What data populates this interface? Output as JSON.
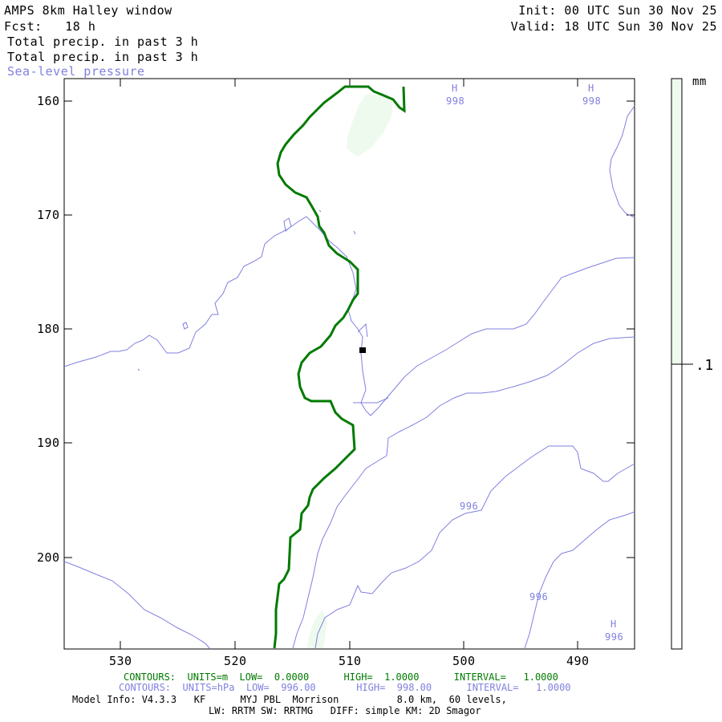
{
  "header": {
    "title_left": "AMPS 8km Halley window",
    "fcst": "Fcst:   18 h",
    "field1": "Total precip. in past 3 h",
    "field2": "Total precip. in past 3 h",
    "field3": "Sea-level pressure",
    "init": "Init: 00 UTC Sun 30 Nov 25",
    "valid": "Valid: 18 UTC Sun 30 Nov 25"
  },
  "axes": {
    "y_ticks": [
      "160",
      "170",
      "180",
      "190",
      "200"
    ],
    "x_ticks": [
      "530",
      "520",
      "510",
      "500",
      "490"
    ]
  },
  "colorbar": {
    "unit": "mm",
    "label": ".1",
    "color": "#eefaee"
  },
  "pressure_labels": {
    "h1": "H",
    "h1v": "998",
    "h2": "H",
    "h2v": "998",
    "h3": "H",
    "h3v": "996",
    "c1": "996",
    "c2": "996"
  },
  "footer": {
    "line1": "CONTOURS:  UNITS=m  LOW=  0.0000      HIGH=  1.0000      INTERVAL=   1.0000",
    "line2": "CONTOURS:  UNITS=hPa  LOW=  996.00       HIGH=  998.00      INTERVAL=   1.0000",
    "line3": "Model Info: V4.3.3   KF      MYJ PBL  Morrison          8.0 km,  60 levels,",
    "line4": "LW: RRTM SW: RRTMG   DIFF: simple KM: 2D Smagor"
  },
  "colors": {
    "terrain": "#007a00",
    "pressure": "#8080e0",
    "precip": "#eefaee"
  }
}
